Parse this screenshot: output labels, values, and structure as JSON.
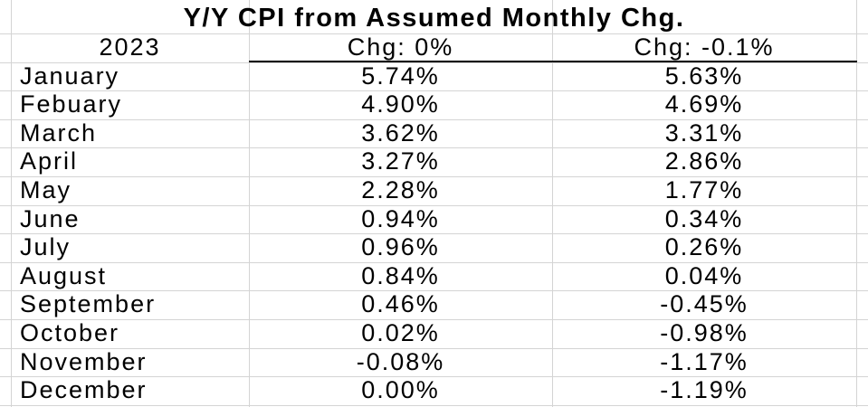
{
  "title": "Y/Y CPI  from Assumed Monthly Chg.",
  "table": {
    "header": [
      "2023",
      "Chg: 0%",
      "Chg: -0.1%"
    ],
    "rows": [
      [
        "January",
        "5.74%",
        "5.63%"
      ],
      [
        "Febuary",
        "4.90%",
        "4.69%"
      ],
      [
        "March",
        "3.62%",
        "3.31%"
      ],
      [
        "April",
        "3.27%",
        "2.86%"
      ],
      [
        "May",
        "2.28%",
        "1.77%"
      ],
      [
        "June",
        "0.94%",
        "0.34%"
      ],
      [
        "July",
        "0.96%",
        "0.26%"
      ],
      [
        "August",
        "0.84%",
        "0.04%"
      ],
      [
        "September",
        "0.46%",
        "-0.45%"
      ],
      [
        "October",
        "0.02%",
        "-0.98%"
      ],
      [
        "November",
        "-0.08%",
        "-1.17%"
      ],
      [
        "December",
        "0.00%",
        "-1.19%"
      ]
    ]
  }
}
